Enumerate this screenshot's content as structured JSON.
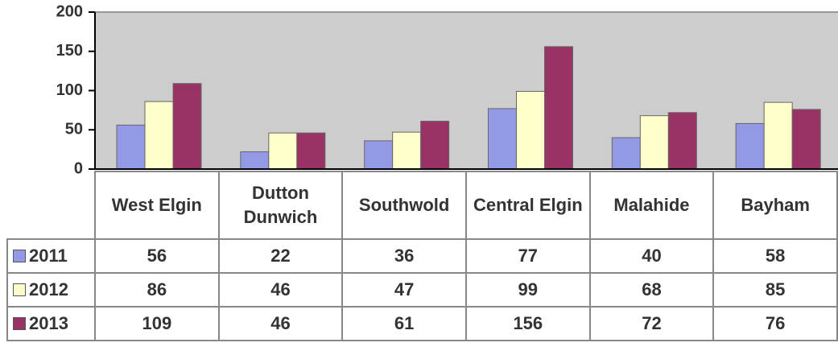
{
  "chart_data": {
    "type": "bar",
    "categories": [
      "West Elgin",
      "Dutton Dunwich",
      "Southwold",
      "Central Elgin",
      "Malahide",
      "Bayham"
    ],
    "series": [
      {
        "name": "2011",
        "color": "#9499e6",
        "values": [
          56,
          22,
          36,
          77,
          40,
          58
        ]
      },
      {
        "name": "2012",
        "color": "#ffffcc",
        "values": [
          86,
          46,
          47,
          99,
          68,
          85
        ]
      },
      {
        "name": "2013",
        "color": "#993366",
        "values": [
          109,
          46,
          61,
          156,
          72,
          76
        ]
      }
    ],
    "ylim": [
      0,
      200
    ],
    "yticks": [
      0,
      50,
      100,
      150,
      200
    ],
    "grid": false
  }
}
